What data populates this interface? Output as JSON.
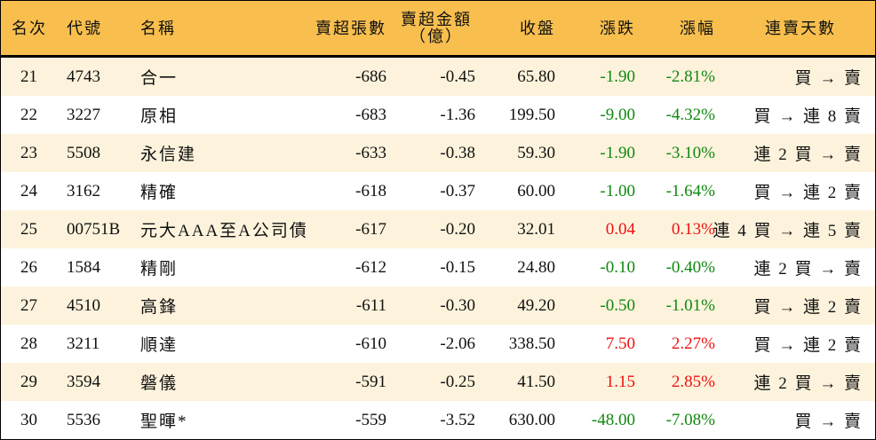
{
  "table": {
    "headers": {
      "rank": "名次",
      "code": "代號",
      "name": "名稱",
      "net_sell_volume": "賣超張數",
      "net_sell_amount_line1": "賣超金額",
      "net_sell_amount_line2": "（億）",
      "close": "收盤",
      "change": "漲跌",
      "change_pct": "漲幅",
      "streak": "連賣天數"
    },
    "colors": {
      "header_bg": "#F8BF4E",
      "alt_row_bg": "#FDF3DC",
      "up": "#EE1111",
      "down": "#118811"
    },
    "rows": [
      {
        "rank": "21",
        "code": "4743",
        "name": "合一",
        "net_sell_volume": "-686",
        "net_sell_amount": "-0.45",
        "close": "65.80",
        "change": "-1.90",
        "change_pct": "-2.81%",
        "direction": "down",
        "streak": "買 → 賣"
      },
      {
        "rank": "22",
        "code": "3227",
        "name": "原相",
        "net_sell_volume": "-683",
        "net_sell_amount": "-1.36",
        "close": "199.50",
        "change": "-9.00",
        "change_pct": "-4.32%",
        "direction": "down",
        "streak": "買 → 連 8 賣"
      },
      {
        "rank": "23",
        "code": "5508",
        "name": "永信建",
        "net_sell_volume": "-633",
        "net_sell_amount": "-0.38",
        "close": "59.30",
        "change": "-1.90",
        "change_pct": "-3.10%",
        "direction": "down",
        "streak": "連 2 買 → 賣"
      },
      {
        "rank": "24",
        "code": "3162",
        "name": "精確",
        "net_sell_volume": "-618",
        "net_sell_amount": "-0.37",
        "close": "60.00",
        "change": "-1.00",
        "change_pct": "-1.64%",
        "direction": "down",
        "streak": "買 → 連 2 賣"
      },
      {
        "rank": "25",
        "code": "00751B",
        "name": "元大AAA至A公司債",
        "net_sell_volume": "-617",
        "net_sell_amount": "-0.20",
        "close": "32.01",
        "change": "0.04",
        "change_pct": "0.13%",
        "direction": "up",
        "streak": "連 4 買 → 連 5 賣"
      },
      {
        "rank": "26",
        "code": "1584",
        "name": "精剛",
        "net_sell_volume": "-612",
        "net_sell_amount": "-0.15",
        "close": "24.80",
        "change": "-0.10",
        "change_pct": "-0.40%",
        "direction": "down",
        "streak": "連 2 買 → 賣"
      },
      {
        "rank": "27",
        "code": "4510",
        "name": "高鋒",
        "net_sell_volume": "-611",
        "net_sell_amount": "-0.30",
        "close": "49.20",
        "change": "-0.50",
        "change_pct": "-1.01%",
        "direction": "down",
        "streak": "買 → 連 2 賣"
      },
      {
        "rank": "28",
        "code": "3211",
        "name": "順達",
        "net_sell_volume": "-610",
        "net_sell_amount": "-2.06",
        "close": "338.50",
        "change": "7.50",
        "change_pct": "2.27%",
        "direction": "up",
        "streak": "買 → 連 2 賣"
      },
      {
        "rank": "29",
        "code": "3594",
        "name": "磐儀",
        "net_sell_volume": "-591",
        "net_sell_amount": "-0.25",
        "close": "41.50",
        "change": "1.15",
        "change_pct": "2.85%",
        "direction": "up",
        "streak": "連 2 買 → 賣"
      },
      {
        "rank": "30",
        "code": "5536",
        "name": "聖暉*",
        "net_sell_volume": "-559",
        "net_sell_amount": "-3.52",
        "close": "630.00",
        "change": "-48.00",
        "change_pct": "-7.08%",
        "direction": "down",
        "streak": "買 → 賣"
      }
    ]
  }
}
